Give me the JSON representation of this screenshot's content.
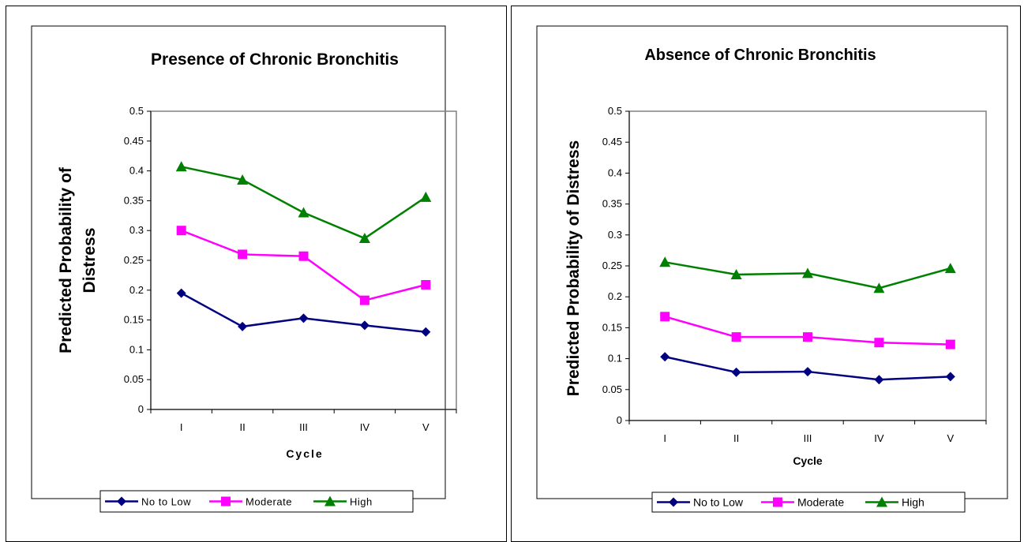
{
  "series_style": [
    {
      "color": "#000080",
      "marker": "diamond"
    },
    {
      "color": "#FF00FF",
      "marker": "square"
    },
    {
      "color": "#008000",
      "marker": "triangle"
    }
  ],
  "chart_data": [
    {
      "type": "line",
      "title": "Presence of Chronic Bronchitis",
      "xlabel": "Cycle",
      "ylabel_lines": [
        "Predicted Probability of",
        "Distress"
      ],
      "categories": [
        "I",
        "II",
        "III",
        "IV",
        "V"
      ],
      "ylim": [
        0,
        0.5
      ],
      "yticks": [
        "0",
        "0.05",
        "0.1",
        "0.15",
        "0.2",
        "0.25",
        "0.3",
        "0.35",
        "0.4",
        "0.45",
        "0.5"
      ],
      "legend_position": "bottom",
      "grid": false,
      "series": [
        {
          "name": "No to Low",
          "values": [
            0.195,
            0.139,
            0.153,
            0.141,
            0.13
          ]
        },
        {
          "name": "Moderate",
          "values": [
            0.3,
            0.26,
            0.257,
            0.183,
            0.209
          ]
        },
        {
          "name": "High",
          "values": [
            0.407,
            0.385,
            0.33,
            0.287,
            0.356
          ]
        }
      ]
    },
    {
      "type": "line",
      "title": "Absence of Chronic Bronchitis",
      "xlabel": "Cycle",
      "ylabel_lines": [
        "Predicted Probability of Distress"
      ],
      "categories": [
        "I",
        "II",
        "III",
        "IV",
        "V"
      ],
      "ylim": [
        0,
        0.5
      ],
      "yticks": [
        "0",
        "0.05",
        "0.1",
        "0.15",
        "0.2",
        "0.25",
        "0.3",
        "0.35",
        "0.4",
        "0.45",
        "0.5"
      ],
      "legend_position": "bottom",
      "grid": false,
      "series": [
        {
          "name": "No to Low",
          "values": [
            0.103,
            0.078,
            0.079,
            0.066,
            0.071
          ]
        },
        {
          "name": "Moderate",
          "values": [
            0.168,
            0.135,
            0.135,
            0.126,
            0.123
          ]
        },
        {
          "name": "High",
          "values": [
            0.256,
            0.236,
            0.238,
            0.214,
            0.246
          ]
        }
      ]
    }
  ]
}
